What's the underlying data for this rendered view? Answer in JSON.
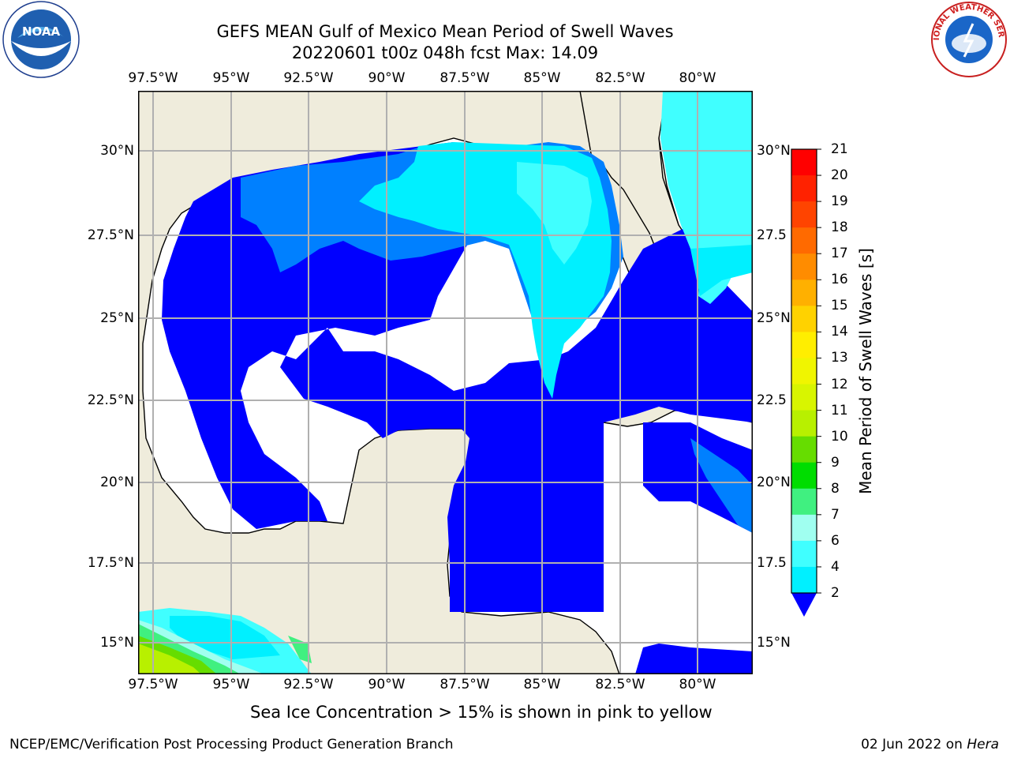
{
  "header": {
    "title_line1": "GEFS MEAN Gulf of Mexico Mean Period of Swell Waves",
    "title_line2": "20220601 t00z 048h fcst   Max: 14.09"
  },
  "logos": {
    "left": "NOAA",
    "left_ring_text": "NATIONAL OCEANIC AND ATMOSPHERIC ADMINISTRATION · U.S. DEPARTMENT OF COMMERCE",
    "right_ring_text": "NATIONAL WEATHER SERVICE"
  },
  "map": {
    "lon_ticks": [
      "97.5°W",
      "95°W",
      "92.5°W",
      "90°W",
      "87.5°W",
      "85°W",
      "82.5°W",
      "80°W"
    ],
    "lat_ticks_left": [
      "30°N",
      "27.5°N",
      "25°N",
      "22.5°N",
      "20°N",
      "17.5°N",
      "15°N"
    ],
    "lat_ticks_right": [
      "30°N",
      "27.5",
      "25°N",
      "22.5",
      "20°N",
      "17.5",
      "15°N"
    ],
    "lon_range": [
      -98,
      -78
    ],
    "lat_range": [
      14,
      31.5
    ],
    "land_color": "#efecdc",
    "grid_color": "#b0b0b0"
  },
  "colorbar": {
    "title": "Mean Period of Swell Waves [s]",
    "labels": [
      "21",
      "20",
      "19",
      "18",
      "17",
      "16",
      "15",
      "14",
      "13",
      "12",
      "11",
      "10",
      "9",
      "8",
      "7",
      "6",
      "4",
      "2"
    ],
    "colors": [
      "#ff0000",
      "#ff2200",
      "#ff4400",
      "#ff6a00",
      "#ff8c00",
      "#ffb000",
      "#ffd200",
      "#ffee00",
      "#f0f500",
      "#d8f500",
      "#b8f000",
      "#66dd00",
      "#00dd00",
      "#40f080",
      "#a0fff0",
      "#40ffff",
      "#00f0ff",
      "#0080ff"
    ],
    "extend_color": "#0000ff"
  },
  "footnote": "Sea Ice Concentration > 15% is shown in pink to yellow",
  "credit": "NCEP/EMC/Verification Post Processing Product Generation Branch",
  "date": {
    "text": "02 Jun 2022 on ",
    "machine": "Hera"
  }
}
